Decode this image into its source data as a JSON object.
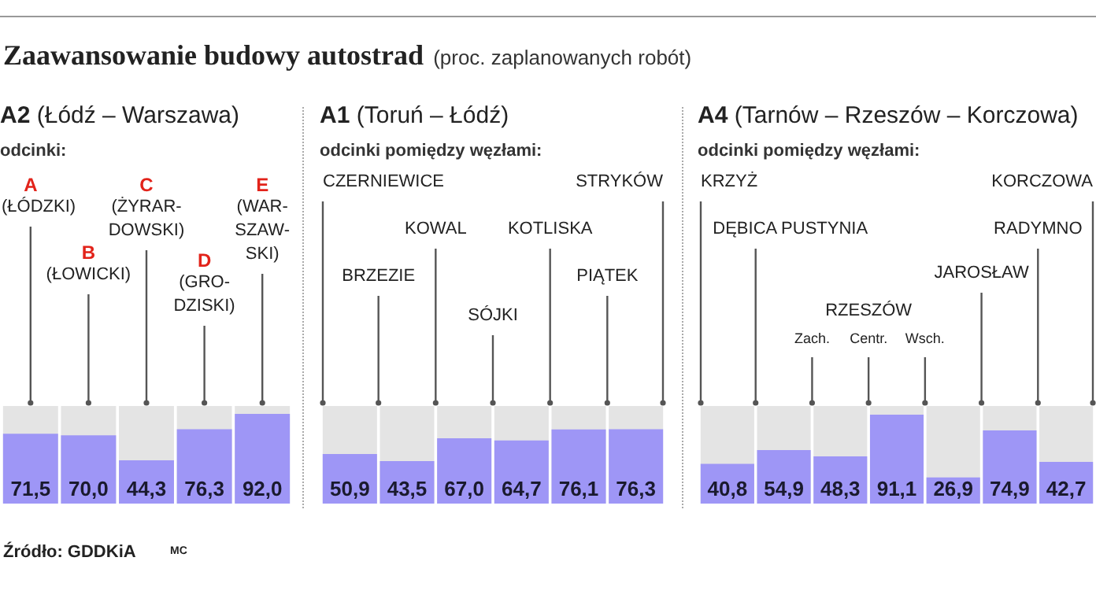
{
  "chart_data": [
    {
      "type": "other",
      "title": "Zaawansowanie budowy autostrad",
      "subtitle": "(proc. zaplanowanych robót)",
      "annotations": [
        "Źródło: GDDKiA",
        "MC"
      ]
    },
    {
      "type": "bar",
      "title": "A2 (Łódź – Warszawa)",
      "subtitle": "odcinki:",
      "categories": [
        "A",
        "B",
        "C",
        "D",
        "E"
      ],
      "values": [
        71.5,
        70.0,
        44.3,
        76.3,
        92.0
      ],
      "value_labels": [
        "71,5",
        "70,0",
        "44,3",
        "76,3",
        "92,0"
      ],
      "color": "#9e96f6",
      "ylim": [
        0,
        100
      ],
      "tick_labels": false,
      "annotations": [
        "(ŁÓDZKI)",
        "(ŁOWICKI)",
        "(ŻYRAR-\nDOWSKI)",
        "(GRO-\nDZISKI)",
        "(WAR-\nSZAW-\nSKI)"
      ]
    },
    {
      "type": "bar",
      "title": "A1 (Toruń – Łódź)",
      "subtitle": "odcinki pomiędzy węzłami:",
      "categories": [
        null,
        null,
        null,
        null,
        null,
        null
      ],
      "values": [
        50.9,
        43.5,
        67.0,
        64.7,
        76.1,
        76.3
      ],
      "value_labels": [
        "50,9",
        "43,5",
        "67,0",
        "64,7",
        "76,1",
        "76,3"
      ],
      "color": "#9e96f6",
      "ylim": [
        0,
        100
      ],
      "tick_labels": false,
      "annotations": [
        "CZERNIEWICE",
        "BRZEZIE",
        "KOWAL",
        "SÓJKI",
        "KOTLISKA",
        "PIĄTEK",
        "STRYKÓW"
      ]
    },
    {
      "type": "bar",
      "title": "A4 (Tarnów – Rzeszów – Korczowa)",
      "subtitle": "odcinki pomiędzy węzłami:",
      "categories": [
        null,
        null,
        null,
        null,
        null,
        null,
        null
      ],
      "values": [
        40.8,
        54.9,
        48.3,
        91.1,
        26.9,
        74.9,
        42.7
      ],
      "value_labels": [
        "40,8",
        "54,9",
        "48,3",
        "91,1",
        "26,9",
        "74,9",
        "42,7"
      ],
      "color": "#9e96f6",
      "ylim": [
        0,
        100
      ],
      "tick_labels": false,
      "annotations": [
        "KRZYŻ",
        "DĘBICA PUSTYNIA",
        "Zach.",
        "Centr.",
        "Wsch.",
        "JAROSŁAW",
        "RADYMNO",
        "KORCZOWA",
        "RZESZÓW"
      ]
    }
  ]
}
